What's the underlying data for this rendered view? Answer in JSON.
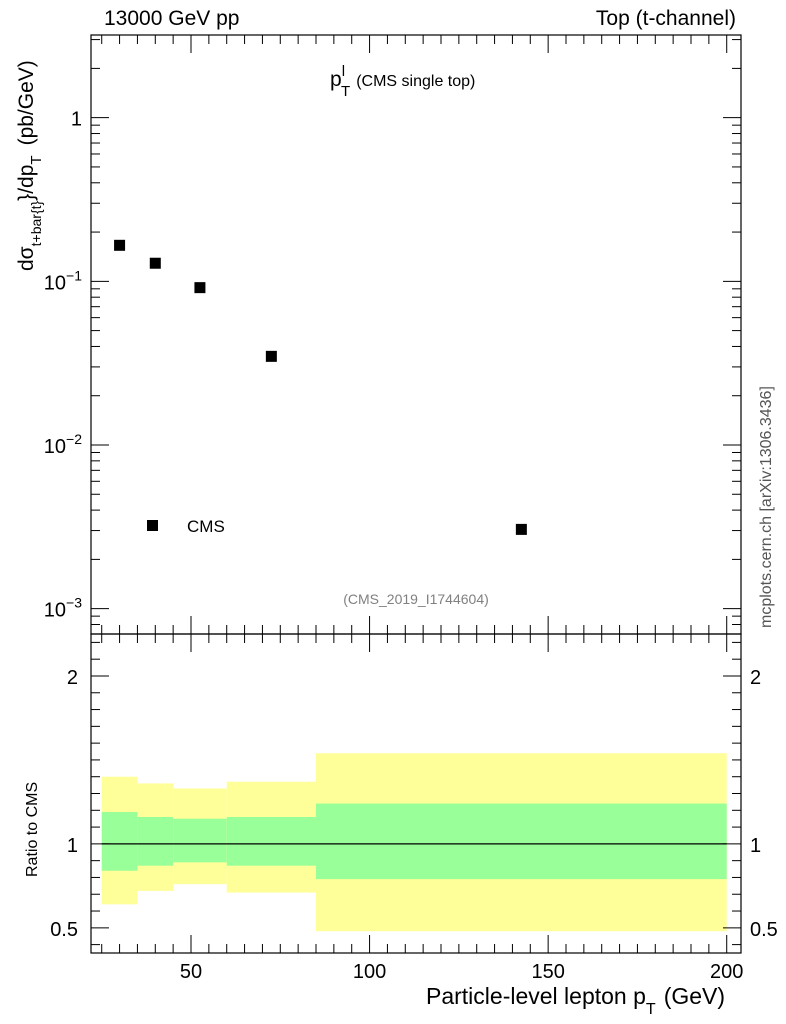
{
  "header": {
    "left": "13000 GeV pp",
    "right": "Top (t-channel)"
  },
  "side_label": "mcplots.cern.ch [arXiv:1306.3436]",
  "colors": {
    "band_inner": "#99ff99",
    "band_outer": "#ffff99",
    "markers": "#000000",
    "reference_text": "#808080"
  },
  "chart_data": [
    {
      "type": "scatter",
      "title": "p_T^l (CMS single top)",
      "title_main": "p",
      "title_sub": "T",
      "title_sup": "l",
      "title_rest": "(CMS single top)",
      "ylabel": "dσ_{t+bar{t}}/dp_T (pb/GeV)",
      "ylabel_parts": {
        "d": "dσ",
        "sub": "t+bar{t}",
        "mid": "}/dp",
        "sub2": "T",
        "unit": "(pb/GeV)"
      },
      "y_scale": "log",
      "xlim": [
        22,
        204
      ],
      "ylim": [
        0.0007,
        3.2
      ],
      "y_ticks": [
        {
          "value": 0.001,
          "base": "10",
          "exp": "−3"
        },
        {
          "value": 0.01,
          "base": "10",
          "exp": "−2"
        },
        {
          "value": 0.1,
          "base": "10",
          "exp": "−1"
        },
        {
          "value": 1,
          "base": "1",
          "exp": ""
        }
      ],
      "series": [
        {
          "name": "CMS",
          "x": [
            30,
            40,
            52.5,
            72.5,
            142.5
          ],
          "y": [
            0.166,
            0.129,
            0.0915,
            0.0348,
            0.00305
          ]
        }
      ],
      "legend_position": "bottom-left",
      "reference": "(CMS_2019_I1744604)",
      "grid": false
    },
    {
      "type": "area",
      "ylabel": "Ratio to CMS",
      "xlabel": "Particle-level lepton p_T (GeV)",
      "xlabel_main": "Particle-level lepton p",
      "xlabel_sub": "T",
      "xlabel_unit": "(GeV)",
      "xlim": [
        22,
        204
      ],
      "ylim": [
        0.35,
        2.25
      ],
      "x_ticks": [
        50,
        100,
        150,
        200
      ],
      "y_ticks": [
        0.5,
        1,
        2
      ],
      "bins": [
        {
          "lo": 25,
          "hi": 35,
          "inner": [
            0.84,
            1.19
          ],
          "outer": [
            0.64,
            1.4
          ]
        },
        {
          "lo": 35,
          "hi": 45,
          "inner": [
            0.87,
            1.16
          ],
          "outer": [
            0.72,
            1.36
          ]
        },
        {
          "lo": 45,
          "hi": 60,
          "inner": [
            0.89,
            1.15
          ],
          "outer": [
            0.76,
            1.33
          ]
        },
        {
          "lo": 60,
          "hi": 85,
          "inner": [
            0.87,
            1.16
          ],
          "outer": [
            0.71,
            1.37
          ]
        },
        {
          "lo": 85,
          "hi": 200,
          "inner": [
            0.79,
            1.24
          ],
          "outer": [
            0.48,
            1.54
          ]
        }
      ],
      "reference_line": 1,
      "grid": false
    }
  ]
}
